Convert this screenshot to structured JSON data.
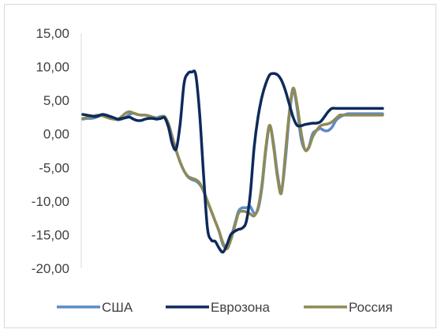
{
  "chart_data": {
    "type": "line",
    "title": "",
    "xlabel": "",
    "ylabel": "",
    "ylim": [
      -20,
      15
    ],
    "yticks": [
      15,
      10,
      5,
      0,
      -5,
      -10,
      -15,
      -20
    ],
    "ytick_labels": [
      "15,00",
      "10,00",
      "5,00",
      "0,00",
      "-5,00",
      "-10,00",
      "-15,00",
      "-20,00"
    ],
    "grid": false,
    "legend_position": "bottom",
    "x": [
      1,
      2,
      3,
      4,
      5,
      6,
      7,
      8,
      9,
      10,
      11,
      12,
      13,
      14,
      15,
      16,
      17,
      18,
      19,
      20,
      21,
      22,
      23,
      24,
      25,
      26,
      27,
      28,
      29,
      30,
      31,
      32,
      33,
      34,
      35,
      36,
      37,
      38,
      39,
      40,
      41,
      42,
      43,
      44,
      45,
      46,
      47,
      48,
      49,
      50,
      51,
      52,
      53,
      54,
      55,
      56,
      57,
      58,
      59,
      60,
      61,
      62,
      63,
      64,
      65,
      66,
      67,
      68,
      69,
      70,
      71,
      72,
      73,
      74,
      75,
      76,
      77,
      78
    ],
    "series": [
      {
        "name": "США",
        "color": "#5B8BC9",
        "values": [
          2.2,
          2.3,
          2.3,
          2.4,
          2.6,
          2.8,
          2.7,
          2.4,
          2.2,
          2.1,
          2.2,
          2.5,
          2.9,
          3.1,
          2.9,
          2.8,
          2.8,
          2.6,
          2.5,
          2.4,
          2.6,
          2.5,
          1.5,
          -0.5,
          -2.5,
          -4.2,
          -5.5,
          -6.4,
          -6.8,
          -7.0,
          -7.5,
          -8.5,
          -10.0,
          -11.5,
          -13.0,
          -14.5,
          -16.5,
          -16.8,
          -15.5,
          -13.5,
          -11.5,
          -11.0,
          -11.0,
          -10.8,
          -11.8,
          -11.2,
          -8.0,
          -2.5,
          1.2,
          -1.5,
          -6.0,
          -8.5,
          -4.0,
          2.5,
          6.5,
          4.0,
          -0.5,
          -2.3,
          -2.0,
          0.0,
          0.5,
          0.8,
          0.5,
          0.5,
          1.0,
          2.0,
          2.5,
          2.8,
          3.0,
          3.0,
          3.0,
          3.0,
          3.0,
          3.0,
          3.0,
          3.0,
          3.0,
          3.0
        ]
      },
      {
        "name": "Еврозона",
        "color": "#0E2A5C",
        "values": [
          2.9,
          2.8,
          2.7,
          2.6,
          2.7,
          2.9,
          2.8,
          2.6,
          2.4,
          2.2,
          2.3,
          2.4,
          2.5,
          2.2,
          2.0,
          2.0,
          2.2,
          2.3,
          2.3,
          2.2,
          2.3,
          2.4,
          1.0,
          -1.5,
          -2.2,
          1.5,
          7.5,
          9.0,
          9.2,
          8.8,
          3.0,
          -6.0,
          -14.0,
          -15.8,
          -16.0,
          -17.0,
          -17.6,
          -16.5,
          -15.0,
          -14.5,
          -14.2,
          -14.0,
          -13.0,
          -9.0,
          -2.0,
          2.5,
          5.5,
          7.5,
          8.8,
          9.0,
          8.8,
          8.0,
          6.5,
          4.5,
          2.5,
          1.3,
          1.2,
          1.4,
          1.5,
          1.6,
          1.6,
          1.8,
          2.5,
          3.3,
          3.8,
          3.8,
          3.8,
          3.8,
          3.8,
          3.8,
          3.8,
          3.8,
          3.8,
          3.8,
          3.8,
          3.8,
          3.8,
          3.8
        ]
      },
      {
        "name": "Россия",
        "color": "#8F8A57",
        "values": [
          2.3,
          2.4,
          2.5,
          2.7,
          2.8,
          2.7,
          2.5,
          2.3,
          2.2,
          2.2,
          2.6,
          3.1,
          3.3,
          3.1,
          2.9,
          2.8,
          2.8,
          2.7,
          2.5,
          2.3,
          2.4,
          2.6,
          1.5,
          -0.5,
          -2.5,
          -4.2,
          -5.5,
          -6.3,
          -6.6,
          -6.8,
          -7.3,
          -8.5,
          -10.0,
          -11.5,
          -13.0,
          -14.5,
          -16.2,
          -17.1,
          -15.8,
          -13.8,
          -11.8,
          -11.5,
          -11.6,
          -11.9,
          -12.2,
          -11.0,
          -7.5,
          -2.0,
          1.3,
          -2.0,
          -6.5,
          -8.8,
          -3.0,
          3.0,
          6.8,
          4.5,
          0.5,
          -2.3,
          -2.1,
          -0.5,
          0.5,
          1.2,
          1.4,
          1.5,
          1.8,
          2.3,
          2.8,
          2.8,
          2.8,
          2.8,
          2.8,
          2.8,
          2.8,
          2.8,
          2.8,
          2.8,
          2.8,
          2.8
        ]
      }
    ]
  }
}
